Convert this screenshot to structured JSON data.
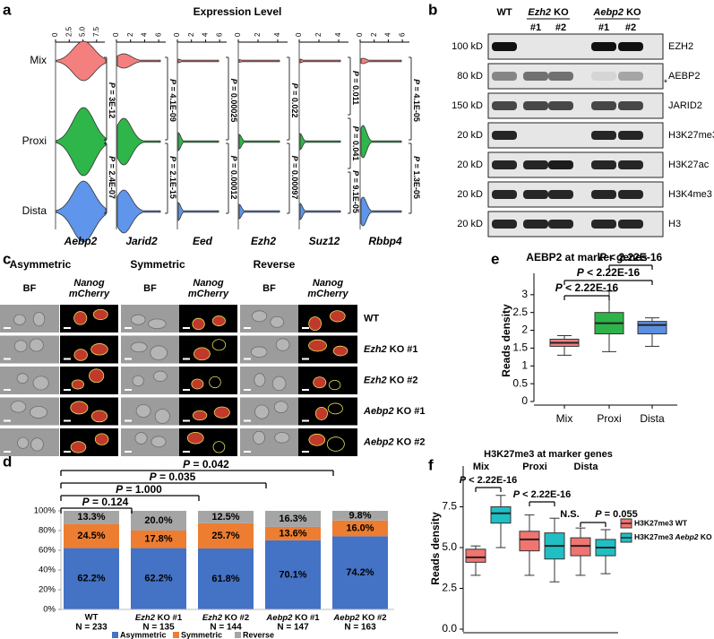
{
  "panel_letters": [
    "a",
    "b",
    "c",
    "d",
    "e",
    "f"
  ],
  "chart_data": [
    {
      "type": "violin",
      "title": "Expression Level",
      "groups": [
        "Mix",
        "Proxi",
        "Dista"
      ],
      "colors": [
        "#f47f7f",
        "#2fb64a",
        "#5f95ea"
      ],
      "genes": [
        {
          "name": "Aebp2",
          "xlim": [
            0,
            9
          ],
          "xticks": [
            0,
            2.5,
            {
              "value": 5,
              "label": "5.0"
            },
            7.5
          ],
          "p_values": [
            "P = 3E-12",
            "P = 2.4E-07"
          ]
        },
        {
          "name": "Jarid2",
          "xlim": [
            0,
            7
          ],
          "xticks": [
            0,
            2,
            4,
            6
          ],
          "p_values": [
            "P = 4.1E-09",
            "P = 2.1E-15"
          ]
        },
        {
          "name": "Eed",
          "xlim": [
            0,
            7
          ],
          "xticks": [
            0,
            2,
            4,
            6
          ],
          "p_values": [
            "P = 0.00025",
            "P = 0.00012"
          ]
        },
        {
          "name": "Ezh2",
          "xlim": [
            0,
            5
          ],
          "xticks": [
            0,
            2,
            4
          ],
          "p_values": [
            "P = 0.022",
            "P = 0.00097"
          ]
        },
        {
          "name": "Suz12",
          "xlim": [
            0,
            5
          ],
          "xticks": [
            0,
            2,
            4
          ],
          "p_values": [
            "P = 0.011",
            "P = 0.041",
            "P = 9.1E-05"
          ]
        },
        {
          "name": "Rbbp4",
          "xlim": [
            0,
            7
          ],
          "xticks": [
            0,
            2,
            4,
            6
          ],
          "p_values": [
            "P = 4.1E-05",
            "P = 1.3E-05"
          ]
        }
      ]
    },
    {
      "type": "stacked_bar",
      "categories": [
        "WT",
        "Ezh2 KO #1",
        "Ezh2 KO #2",
        "Aebp2 KO #1",
        "Aebp2 KO #2"
      ],
      "n_labels": [
        "N = 233",
        "N = 135",
        "N = 144",
        "N = 147",
        "N = 163"
      ],
      "ylim": [
        0,
        100
      ],
      "yticks": [
        {
          "value": 0,
          "label": "0%"
        },
        {
          "value": 20,
          "label": "20%"
        },
        {
          "value": 40,
          "label": "40%"
        },
        {
          "value": 60,
          "label": "60%"
        },
        {
          "value": 80,
          "label": "80%"
        },
        {
          "value": 100,
          "label": "100%"
        }
      ],
      "series": [
        {
          "name": "Asymmetric",
          "color": "#4472c4",
          "values": [
            62.2,
            62.2,
            61.8,
            70.1,
            74.2
          ],
          "value_labels": [
            "62.2%",
            "62.2%",
            "61.8%",
            "70.1%",
            "74.2%"
          ]
        },
        {
          "name": "Symmetric",
          "color": "#ed7d31",
          "values": [
            24.5,
            17.8,
            25.7,
            13.6,
            16.0
          ],
          "value_labels": [
            "24.5%",
            "17.8%",
            "25.7%",
            "13.6%",
            "16.0%"
          ]
        },
        {
          "name": "Reverse",
          "color": "#a5a5a5",
          "values": [
            13.3,
            20.0,
            12.5,
            16.3,
            9.8
          ],
          "value_labels": [
            "13.3%",
            "20.0%",
            "12.5%",
            "16.3%",
            "9.8%"
          ]
        }
      ],
      "comparisons": [
        "P = 0.124",
        "P = 1.000",
        "P = 0.035",
        "P = 0.042"
      ]
    },
    {
      "type": "box",
      "title": "AEBP2 at marker genes",
      "ylabel": "Reads density",
      "categories": [
        "Mix",
        "Proxi",
        "Dista"
      ],
      "colors": [
        "#f08080",
        "#2db34a",
        "#5b8fe0"
      ],
      "boxes": [
        {
          "min": 1.3,
          "q1": 1.55,
          "median": 1.65,
          "q3": 1.75,
          "max": 1.85
        },
        {
          "min": 1.4,
          "q1": 1.9,
          "median": 2.2,
          "q3": 2.5,
          "max": 3.1
        },
        {
          "min": 1.55,
          "q1": 1.9,
          "median": 2.15,
          "q3": 2.25,
          "max": 2.35
        }
      ],
      "ylim": [
        0,
        3.6
      ],
      "yticks": [
        0,
        0.5,
        1,
        1.5,
        2,
        2.5,
        3
      ],
      "annotations": [
        "P < 2.22E-16",
        "P < 2.22E-16",
        "P < 2.22E-16"
      ]
    },
    {
      "type": "grouped_box",
      "title": "H3K27me3 at marker genes",
      "ylabel": "Reads density",
      "categories": [
        "Mix",
        "Proxi",
        "Dista"
      ],
      "ylim": [
        0,
        10
      ],
      "yticks": [
        {
          "value": 0,
          "label": "0.0"
        },
        2.5,
        {
          "value": 5,
          "label": "5.0"
        },
        7.5
      ],
      "series": [
        {
          "name": "H3K27me3 WT",
          "color": "#f07470",
          "boxes": [
            {
              "min": 3.3,
              "q1": 4.1,
              "median": 4.4,
              "q3": 4.9,
              "max": 5.1
            },
            {
              "min": 3.3,
              "q1": 4.8,
              "median": 5.5,
              "q3": 6.0,
              "max": 7.0
            },
            {
              "min": 3.3,
              "q1": 4.5,
              "median": 5.1,
              "q3": 5.6,
              "max": 6.2
            }
          ]
        },
        {
          "name": "H3K27me3 Aebp2 KO",
          "color": "#1fbfc4",
          "boxes": [
            {
              "min": 5.0,
              "q1": 6.5,
              "median": 7.1,
              "q3": 7.5,
              "max": 8.2
            },
            {
              "min": 2.9,
              "q1": 4.3,
              "median": 5.1,
              "q3": 5.9,
              "max": 6.8
            },
            {
              "min": 3.4,
              "q1": 4.5,
              "median": 5.0,
              "q3": 5.5,
              "max": 6.1
            }
          ]
        }
      ],
      "annotations": [
        "P < 2.22E-16",
        "P < 2.22E-16",
        "N.S.",
        "P = 0.055"
      ],
      "legend": "right"
    }
  ],
  "blot": {
    "groups": [
      {
        "label": "WT"
      },
      {
        "label": "Ezh2 KO",
        "lanes": [
          "#1",
          "#2"
        ]
      },
      {
        "label": "Aebp2 KO",
        "lanes": [
          "#1",
          "#2"
        ]
      }
    ],
    "rows": [
      {
        "size": "100 kD",
        "protein": "EZH2"
      },
      {
        "size": "80 kD",
        "protein": "AEBP2"
      },
      {
        "size": "150 kD",
        "protein": "JARID2"
      },
      {
        "size": "20 kD",
        "protein": "H3K27me3"
      },
      {
        "size": "20 kD",
        "protein": "H3K27ac"
      },
      {
        "size": "20 kD",
        "protein": "H3K4me3"
      },
      {
        "size": "20 kD",
        "protein": "H3"
      }
    ],
    "marker": "*"
  },
  "imaging": {
    "conditions": [
      {
        "label": "Asymmetric",
        "color": "#1e8fd8"
      },
      {
        "label": "Symmetric",
        "color": "#e0782a"
      },
      {
        "label": "Reverse",
        "color": "#888888"
      }
    ],
    "channels": {
      "bright": "BF",
      "fluor": [
        "Nanog",
        "mCherry"
      ]
    },
    "rows": [
      "WT",
      "Ezh2 KO #1",
      "Ezh2 KO #2",
      "Aebp2 KO #1",
      "Aebp2 KO #2"
    ]
  }
}
